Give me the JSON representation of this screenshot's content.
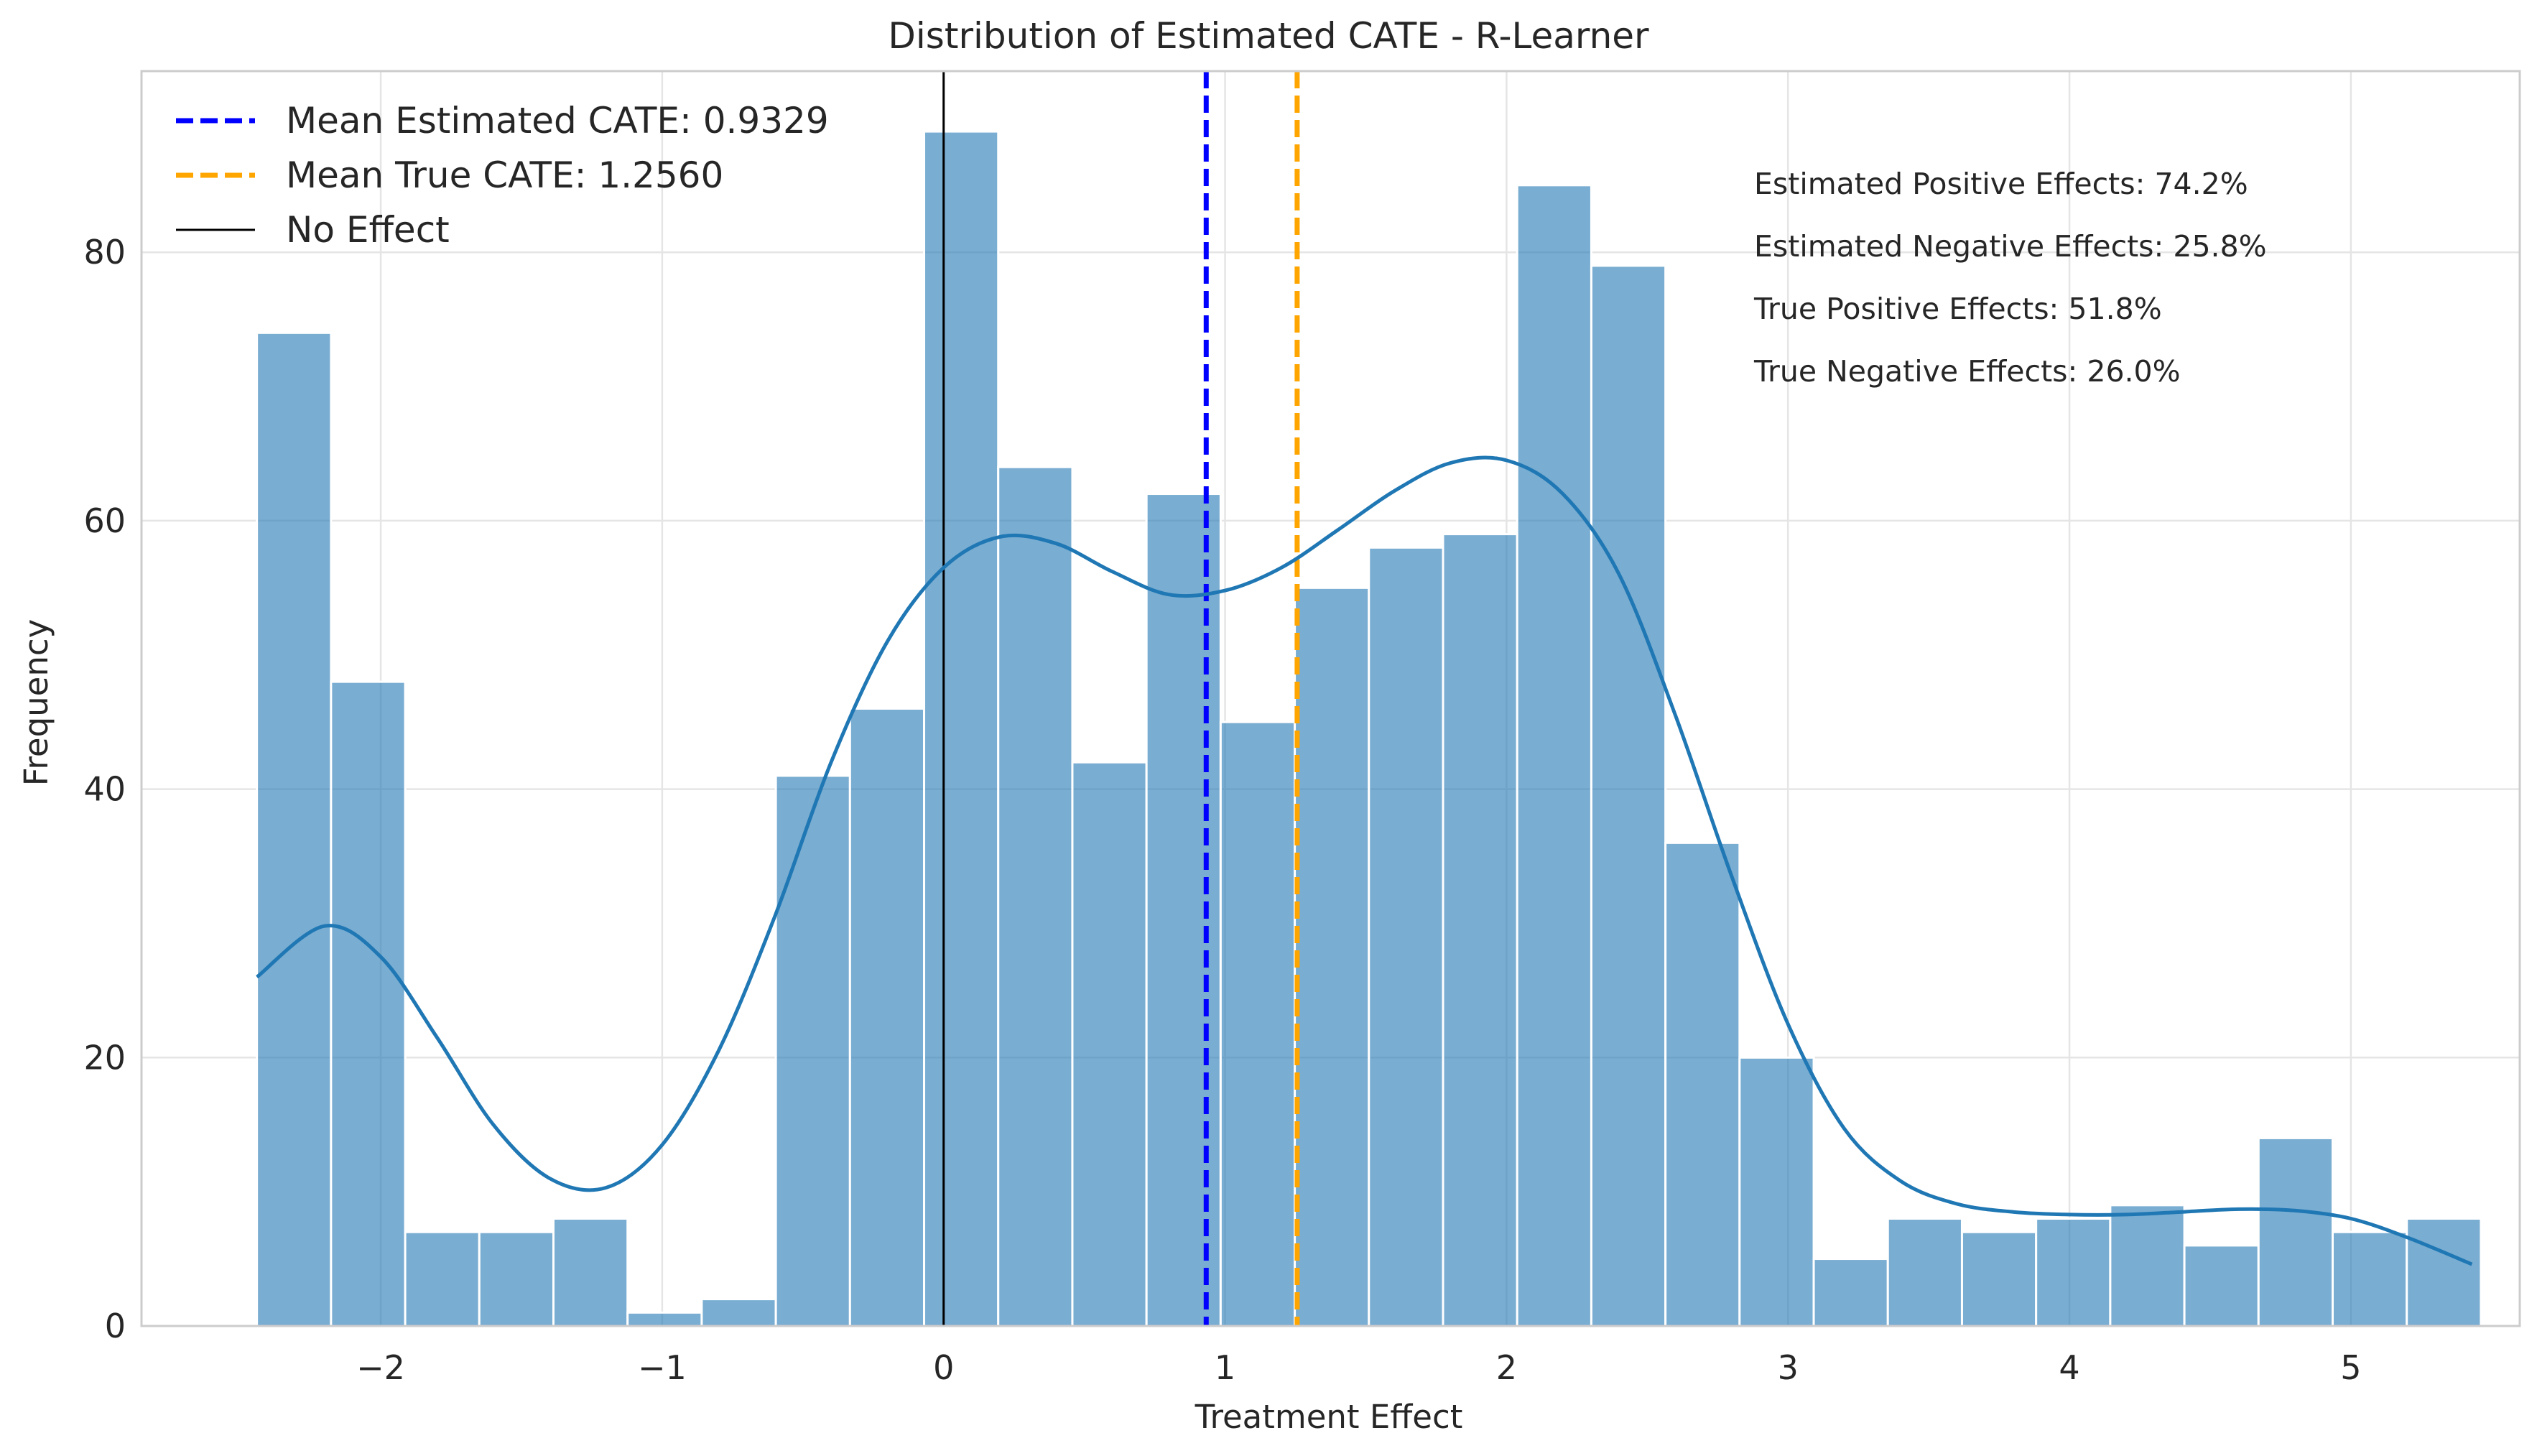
{
  "chart_data": {
    "type": "bar",
    "title": "Distribution of Estimated CATE - R-Learner",
    "xlabel": "Treatment Effect",
    "ylabel": "Frequency",
    "xlim": [
      -2.85,
      5.6
    ],
    "ylim": [
      0,
      93.5
    ],
    "grid": true,
    "legend_placement": "top-left",
    "bin_start": -2.44,
    "bin_width": 0.2634,
    "counts": [
      74,
      48,
      7,
      7,
      8,
      1,
      2,
      41,
      46,
      89,
      64,
      42,
      62,
      45,
      55,
      58,
      59,
      85,
      79,
      36,
      20,
      5,
      8,
      7,
      8,
      9,
      6,
      14,
      7,
      8
    ],
    "kde": {
      "x": [
        -2.44,
        -2.2,
        -2.0,
        -1.8,
        -1.6,
        -1.4,
        -1.2,
        -1.0,
        -0.8,
        -0.6,
        -0.4,
        -0.2,
        0.0,
        0.2,
        0.4,
        0.6,
        0.8,
        1.0,
        1.2,
        1.4,
        1.6,
        1.8,
        2.0,
        2.2,
        2.4,
        2.6,
        2.8,
        3.0,
        3.2,
        3.4,
        3.6,
        3.8,
        4.0,
        4.2,
        4.4,
        4.6,
        4.8,
        5.0,
        5.2,
        5.43
      ],
      "y": [
        26,
        29.8,
        27.5,
        21.5,
        15,
        11,
        10.3,
        13.5,
        20.5,
        30.5,
        42,
        51,
        56.5,
        58.8,
        58.3,
        56.2,
        54.5,
        54.8,
        56.5,
        59.3,
        62.2,
        64.3,
        64.5,
        62,
        56,
        45.5,
        33.5,
        22.5,
        14.7,
        10.8,
        9.1,
        8.5,
        8.3,
        8.3,
        8.5,
        8.7,
        8.6,
        8.0,
        6.6,
        4.6
      ]
    },
    "vlines": [
      {
        "label": "Mean Estimated CATE: 0.9329",
        "x": 0.9329,
        "color": "#0000ff",
        "style": "dashed"
      },
      {
        "label": "Mean True CATE: 1.2560",
        "x": 1.256,
        "color": "#ffa500",
        "style": "dashed"
      },
      {
        "label": "No Effect",
        "x": 0,
        "color": "#000000",
        "style": "solid"
      }
    ],
    "x_ticks": [
      {
        "value": -2,
        "label": "−2"
      },
      {
        "value": -1,
        "label": "−1"
      },
      {
        "value": 0,
        "label": "0"
      },
      {
        "value": 1,
        "label": "1"
      },
      {
        "value": 2,
        "label": "2"
      },
      {
        "value": 3,
        "label": "3"
      },
      {
        "value": 4,
        "label": "4"
      },
      {
        "value": 5,
        "label": "5"
      }
    ],
    "y_ticks": [
      {
        "value": 0,
        "label": "0"
      },
      {
        "value": 20,
        "label": "20"
      },
      {
        "value": 40,
        "label": "40"
      },
      {
        "value": 60,
        "label": "60"
      },
      {
        "value": 80,
        "label": "80"
      }
    ],
    "annotations": [
      "Estimated Positive Effects: 74.2%",
      "Estimated Negative Effects: 25.8%",
      "True Positive Effects: 51.8%",
      "True Negative Effects: 26.0%"
    ],
    "colors": {
      "bar": "#1f77b4",
      "kde": "#1f77b4",
      "grid": "#e5e5e5",
      "axes": "#cccccc"
    }
  }
}
